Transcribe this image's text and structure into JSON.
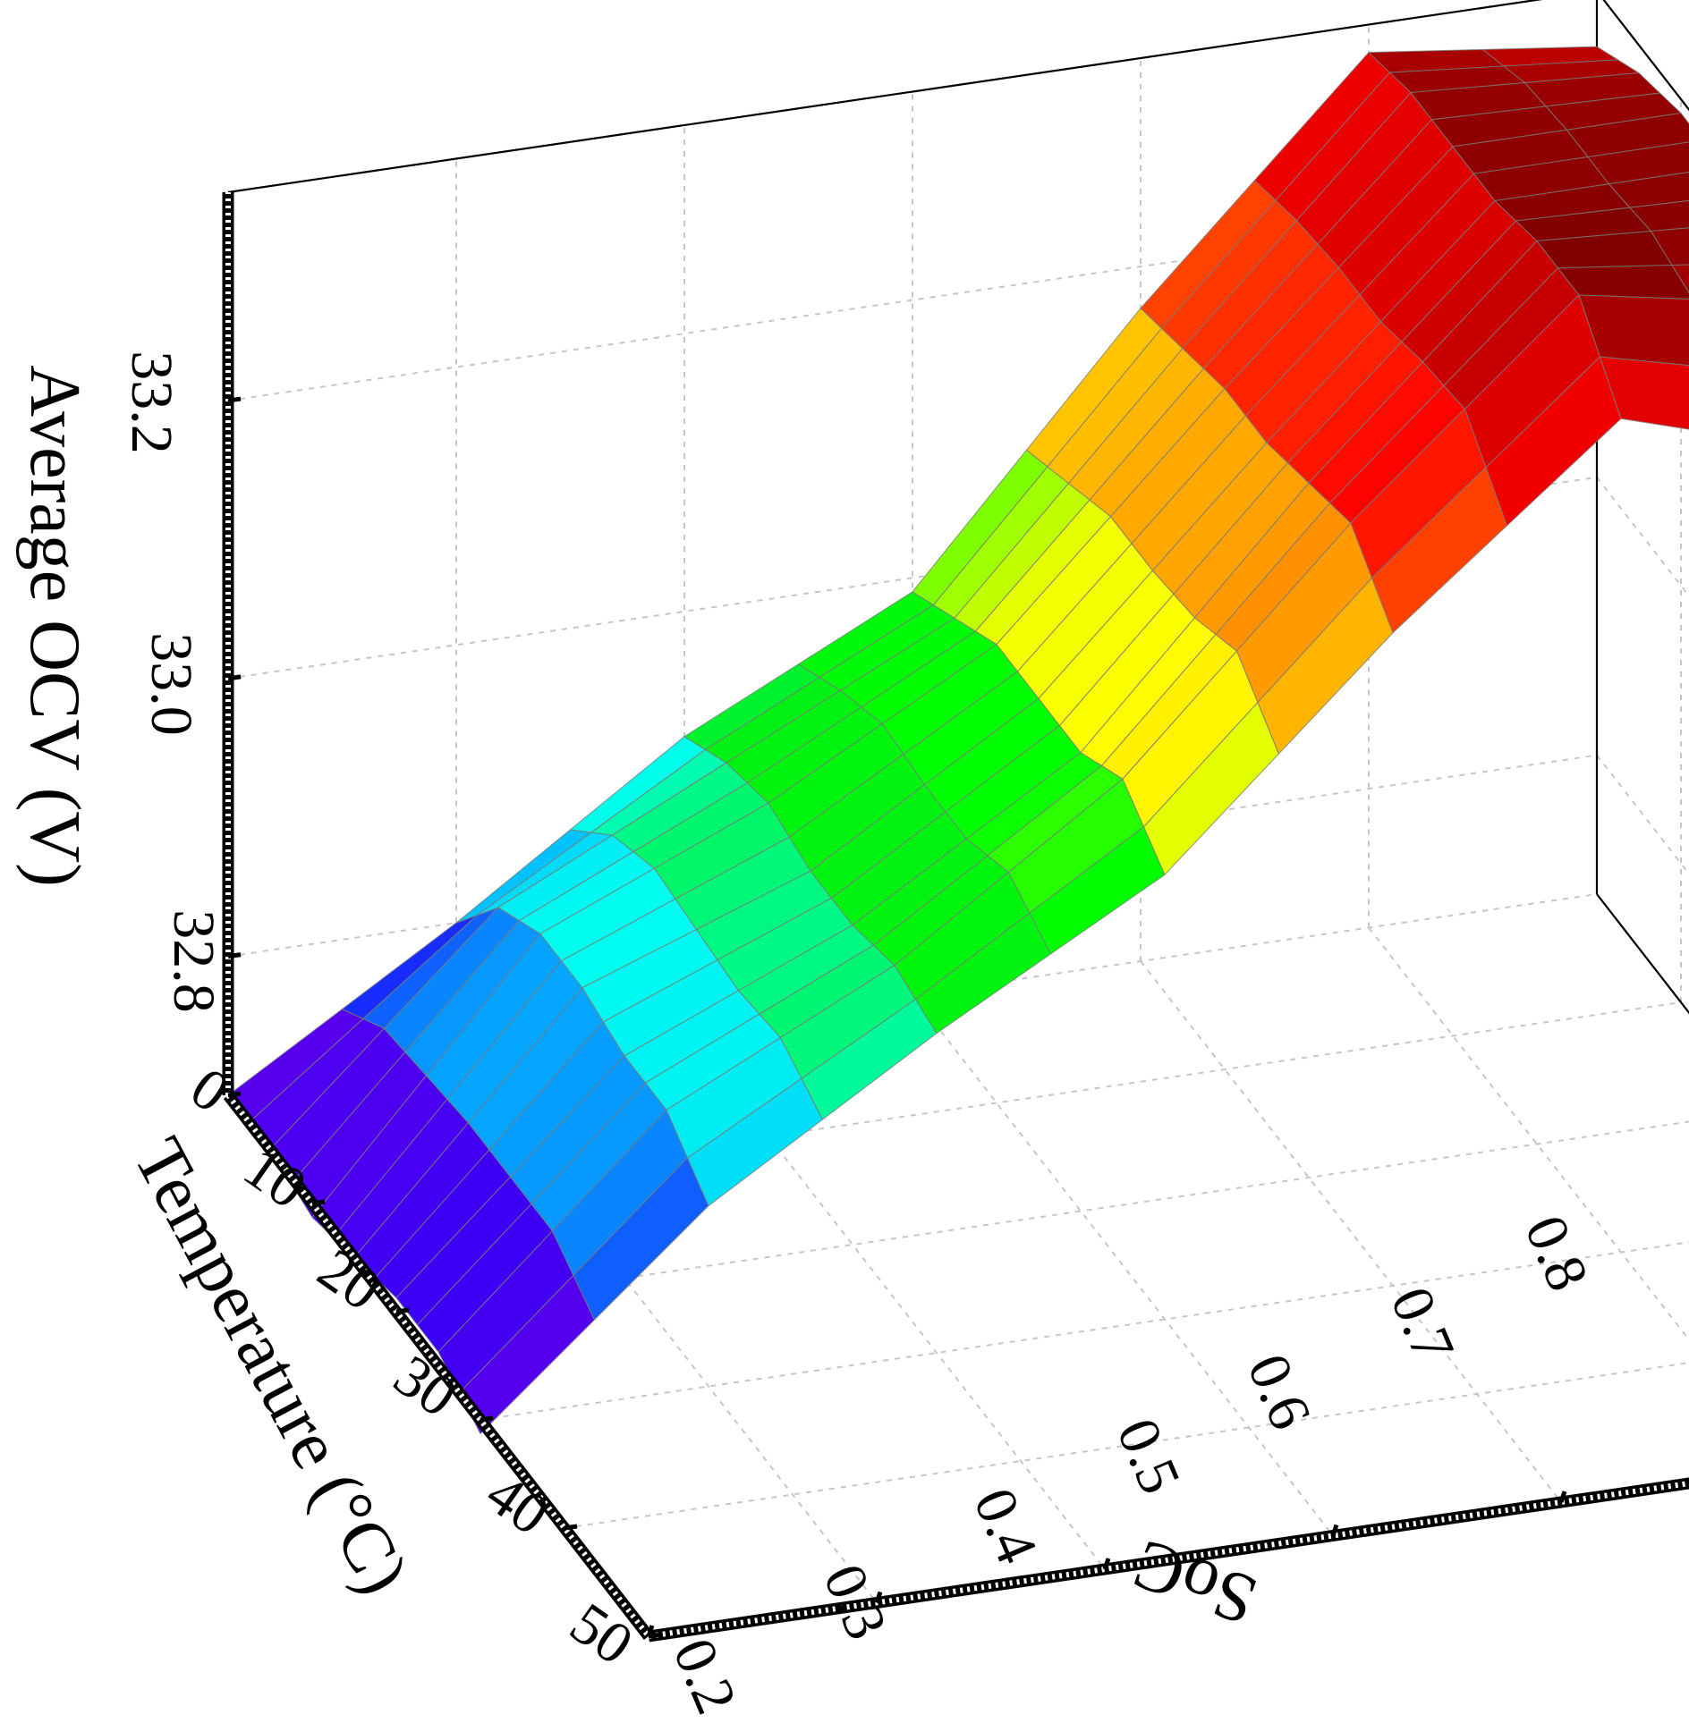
{
  "chart_data": {
    "type": "surface3d",
    "xlabel": "SoC",
    "ylabel": "Temperature (°C)",
    "zlabel": "Average OCV (V)",
    "x_ticks": [
      "0.2",
      "0.3",
      "0.4",
      "0.5",
      "0.6",
      "0.7",
      "0.8"
    ],
    "y_ticks": [
      "0",
      "10",
      "20",
      "30",
      "40",
      "50"
    ],
    "z_ticks": [
      "32.8",
      "33.0",
      "33.2"
    ],
    "xlim": [
      0.2,
      0.8
    ],
    "ylim": [
      0,
      50
    ],
    "zlim": [
      32.7,
      33.35
    ],
    "grid": true,
    "colormap": "rainbow",
    "soc": [
      0.2,
      0.3,
      0.4,
      0.5,
      0.6,
      0.7,
      0.8
    ],
    "temperature": [
      0,
      5,
      10,
      15,
      20,
      25,
      30
    ],
    "ocv": [
      [
        32.7,
        32.8,
        32.91,
        32.99,
        33.17,
        33.33,
        33.31
      ],
      [
        32.7,
        32.85,
        32.93,
        33.01,
        33.18,
        33.34,
        33.33
      ],
      [
        32.69,
        32.87,
        32.94,
        33.03,
        33.19,
        33.34,
        33.34
      ],
      [
        32.7,
        32.87,
        32.93,
        33.03,
        33.19,
        33.34,
        33.34
      ],
      [
        32.71,
        32.86,
        32.93,
        33.03,
        33.2,
        33.35,
        33.34
      ],
      [
        32.71,
        32.86,
        32.94,
        33.05,
        33.21,
        33.35,
        33.32
      ],
      [
        32.69,
        32.83,
        32.93,
        33.02,
        33.17,
        33.3,
        33.25
      ]
    ]
  }
}
